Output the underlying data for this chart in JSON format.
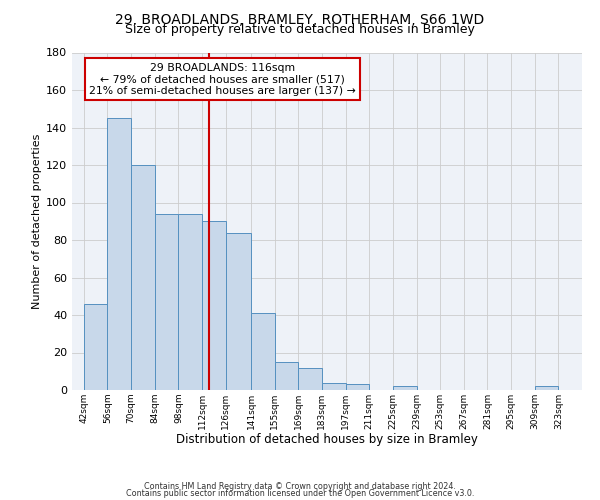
{
  "title": "29, BROADLANDS, BRAMLEY, ROTHERHAM, S66 1WD",
  "subtitle": "Size of property relative to detached houses in Bramley",
  "xlabel": "Distribution of detached houses by size in Bramley",
  "ylabel": "Number of detached properties",
  "bar_left_edges": [
    42,
    56,
    70,
    84,
    98,
    112,
    126,
    141,
    155,
    169,
    183,
    197,
    211,
    225,
    239,
    253,
    267,
    281,
    295,
    309
  ],
  "bar_widths": [
    14,
    14,
    14,
    14,
    14,
    14,
    15,
    14,
    14,
    14,
    14,
    14,
    14,
    14,
    14,
    14,
    14,
    14,
    14,
    14
  ],
  "bar_heights": [
    46,
    145,
    120,
    94,
    94,
    90,
    84,
    41,
    15,
    12,
    4,
    3,
    0,
    2,
    0,
    0,
    0,
    0,
    0,
    2
  ],
  "bar_color": "#c8d8ea",
  "bar_edge_color": "#5590c0",
  "property_size": 116,
  "vline_color": "#cc0000",
  "annotation_line1": "29 BROADLANDS: 116sqm",
  "annotation_line2": "← 79% of detached houses are smaller (517)",
  "annotation_line3": "21% of semi-detached houses are larger (137) →",
  "annotation_box_color": "#ffffff",
  "annotation_box_edge_color": "#cc0000",
  "xlim": [
    35,
    337
  ],
  "ylim": [
    0,
    180
  ],
  "yticks": [
    0,
    20,
    40,
    60,
    80,
    100,
    120,
    140,
    160,
    180
  ],
  "xtick_labels": [
    "42sqm",
    "56sqm",
    "70sqm",
    "84sqm",
    "98sqm",
    "112sqm",
    "126sqm",
    "141sqm",
    "155sqm",
    "169sqm",
    "183sqm",
    "197sqm",
    "211sqm",
    "225sqm",
    "239sqm",
    "253sqm",
    "267sqm",
    "281sqm",
    "295sqm",
    "309sqm",
    "323sqm"
  ],
  "xtick_positions": [
    42,
    56,
    70,
    84,
    98,
    112,
    126,
    141,
    155,
    169,
    183,
    197,
    211,
    225,
    239,
    253,
    267,
    281,
    295,
    309,
    323
  ],
  "grid_color": "#cccccc",
  "background_color": "#eef2f8",
  "footer_line1": "Contains HM Land Registry data © Crown copyright and database right 2024.",
  "footer_line2": "Contains public sector information licensed under the Open Government Licence v3.0."
}
